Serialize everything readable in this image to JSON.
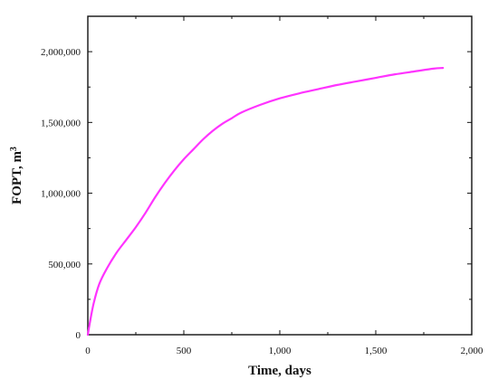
{
  "chart_data": {
    "type": "line",
    "xlabel": "Time, days",
    "ylabel_main": "FOPT, m",
    "ylabel_superscript": "3",
    "xlim": [
      0,
      2000
    ],
    "ylim": [
      0,
      2250000
    ],
    "x_ticks": [
      0,
      500,
      1000,
      1500,
      2000
    ],
    "x_tick_labels": [
      "0",
      "500",
      "1,000",
      "1,500",
      "2,000"
    ],
    "y_ticks": [
      0,
      500000,
      1000000,
      1500000,
      2000000
    ],
    "y_tick_labels": [
      "0",
      "500,000",
      "1,000,000",
      "1,500,000",
      "2,000,000"
    ],
    "grid": false,
    "series": [
      {
        "color": "#ff33ff",
        "x": [
          0,
          10,
          30,
          60,
          100,
          150,
          200,
          250,
          300,
          350,
          400,
          450,
          500,
          550,
          600,
          650,
          700,
          750,
          800,
          900,
          1000,
          1100,
          1200,
          1300,
          1400,
          1500,
          1600,
          1700,
          1800,
          1850
        ],
        "y": [
          0,
          80000,
          220000,
          360000,
          470000,
          580000,
          670000,
          760000,
          860000,
          970000,
          1070000,
          1160000,
          1240000,
          1310000,
          1380000,
          1440000,
          1490000,
          1530000,
          1570000,
          1625000,
          1670000,
          1705000,
          1735000,
          1765000,
          1790000,
          1815000,
          1840000,
          1860000,
          1880000,
          1885000
        ]
      }
    ]
  }
}
